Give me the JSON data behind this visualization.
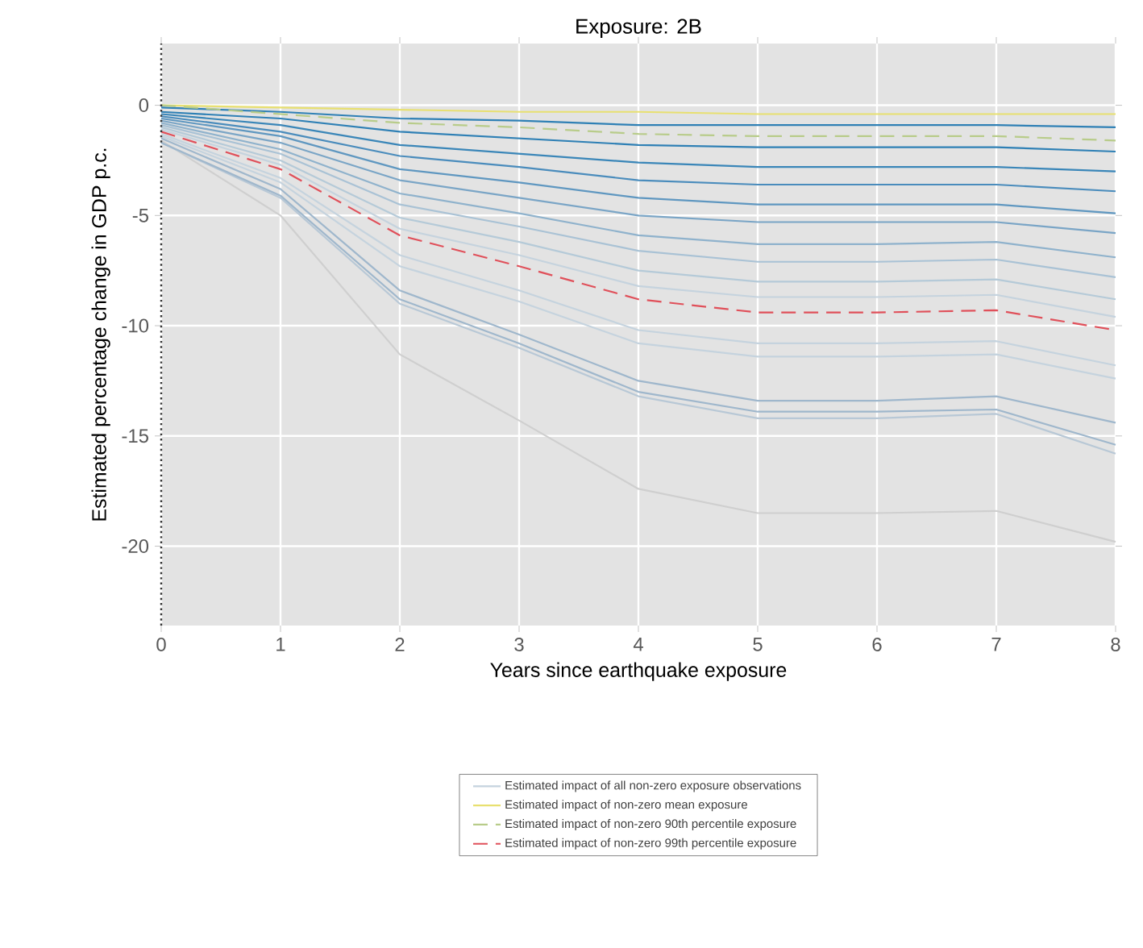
{
  "chart_data": {
    "type": "line",
    "title": "Exposure: 2B",
    "xlabel": "Years since earthquake exposure",
    "ylabel": "Estimated percentage change in GDP p.c.",
    "x": [
      0,
      1,
      2,
      3,
      4,
      5,
      6,
      7,
      8
    ],
    "xlim": [
      0,
      8
    ],
    "ylim": [
      -23.6,
      2.8
    ],
    "xticks": [
      0,
      1,
      2,
      3,
      4,
      5,
      6,
      7,
      8
    ],
    "yticks": [
      -20,
      -15,
      -10,
      -5,
      0
    ],
    "grid": true,
    "legend": "bottom",
    "ref_lines": [
      {
        "axis": "x",
        "value": 0,
        "color": "#333333",
        "line_style": "dotted"
      }
    ],
    "series": [
      {
        "color": "#cfcfcf",
        "values": [
          -1.6,
          -5.0,
          -11.3,
          -14.3,
          -17.4,
          -18.5,
          -18.5,
          -18.4,
          -19.8
        ]
      },
      {
        "color": "#b8c8d6",
        "values": [
          -1.7,
          -4.2,
          -9.0,
          -11.0,
          -13.2,
          -14.2,
          -14.2,
          -14.0,
          -15.8
        ]
      },
      {
        "color": "#9fb7cc",
        "values": [
          -1.7,
          -4.1,
          -8.8,
          -10.8,
          -13.0,
          -13.9,
          -13.9,
          -13.8,
          -15.4
        ]
      },
      {
        "color": "#9fb7cc",
        "values": [
          -1.5,
          -3.8,
          -8.4,
          -10.4,
          -12.5,
          -13.4,
          -13.4,
          -13.2,
          -14.4
        ]
      },
      {
        "color": "#c5d3de",
        "values": [
          -1.4,
          -3.5,
          -7.3,
          -8.9,
          -10.8,
          -11.4,
          -11.4,
          -11.3,
          -12.4
        ]
      },
      {
        "color": "#c5d3de",
        "values": [
          -1.3,
          -3.3,
          -6.8,
          -8.4,
          -10.2,
          -10.8,
          -10.8,
          -10.7,
          -11.8
        ]
      },
      {
        "color": "#b5cad8",
        "values": [
          -1.0,
          -2.5,
          -5.1,
          -6.2,
          -7.5,
          -8.0,
          -8.0,
          -7.9,
          -8.8
        ]
      },
      {
        "color": "#a9c2d5",
        "values": [
          -0.9,
          -2.2,
          -4.5,
          -5.5,
          -6.6,
          -7.1,
          -7.1,
          -7.0,
          -7.8
        ]
      },
      {
        "color": "#8fb2cc",
        "values": [
          -0.8,
          -2.0,
          -4.0,
          -4.9,
          -5.9,
          -6.3,
          -6.3,
          -6.2,
          -6.9
        ]
      },
      {
        "color": "#7aa5c6",
        "values": [
          -0.7,
          -1.7,
          -3.4,
          -4.2,
          -5.0,
          -5.3,
          -5.3,
          -5.3,
          -5.8
        ]
      },
      {
        "color": "#5f97c0",
        "values": [
          -0.6,
          -1.4,
          -2.9,
          -3.5,
          -4.2,
          -4.5,
          -4.5,
          -4.5,
          -4.9
        ]
      },
      {
        "color": "#4a8cbc",
        "values": [
          -0.5,
          -1.2,
          -2.3,
          -2.8,
          -3.4,
          -3.6,
          -3.6,
          -3.6,
          -3.9
        ]
      },
      {
        "color": "#3a86b8",
        "values": [
          -0.4,
          -0.9,
          -1.8,
          -2.2,
          -2.6,
          -2.8,
          -2.8,
          -2.8,
          -3.0
        ]
      },
      {
        "color": "#2f80b5",
        "values": [
          -0.3,
          -0.6,
          -1.2,
          -1.5,
          -1.8,
          -1.9,
          -1.9,
          -1.9,
          -2.1
        ]
      },
      {
        "color": "#2f80b5",
        "values": [
          -0.1,
          -0.3,
          -0.6,
          -0.7,
          -0.9,
          -0.9,
          -0.9,
          -0.9,
          -1.0
        ]
      },
      {
        "name": "Estimated impact of all non-zero exposure observations",
        "color": "#c5d3de",
        "values": [
          -1.1,
          -2.7,
          -5.6,
          -6.8,
          -8.2,
          -8.7,
          -8.7,
          -8.6,
          -9.6
        ]
      },
      {
        "name": "Estimated impact of non-zero mean exposure",
        "color": "#e8e070",
        "values": [
          0,
          -0.1,
          -0.2,
          -0.3,
          -0.3,
          -0.4,
          -0.4,
          -0.4,
          -0.4
        ]
      },
      {
        "name": "Estimated impact of non-zero 90th percentile exposure",
        "color": "#b8cc8a",
        "line_style": "dashed",
        "values": [
          0,
          -0.4,
          -0.8,
          -1.0,
          -1.3,
          -1.4,
          -1.4,
          -1.4,
          -1.6
        ]
      },
      {
        "name": "Estimated impact of non-zero 99th percentile exposure",
        "color": "#e0505a",
        "line_style": "dashed",
        "values": [
          -1.2,
          -2.9,
          -5.9,
          -7.3,
          -8.8,
          -9.4,
          -9.4,
          -9.3,
          -10.2
        ]
      }
    ]
  }
}
